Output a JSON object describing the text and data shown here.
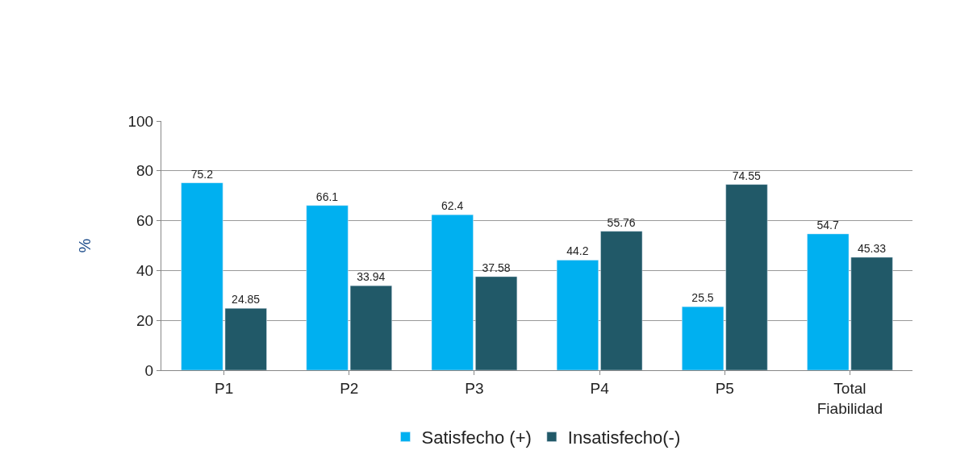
{
  "chart_data": {
    "type": "bar",
    "ylabel": "%",
    "categories": [
      "P1",
      "P2",
      "P3",
      "P4",
      "P5",
      "Total Fiabilidad"
    ],
    "series": [
      {
        "name": "Satisfecho (+)",
        "color": "#00b0f0",
        "values": [
          75.2,
          66.1,
          62.4,
          44.2,
          25.5,
          54.7
        ]
      },
      {
        "name": "Insatisfecho(-)",
        "color": "#215968",
        "values": [
          24.85,
          33.94,
          37.58,
          55.76,
          74.55,
          45.33
        ]
      }
    ],
    "ylim": [
      0,
      100
    ],
    "yticks": [
      0,
      20,
      40,
      60,
      80,
      100
    ],
    "grid": "y",
    "legend": "bottom",
    "data_labels": true
  }
}
